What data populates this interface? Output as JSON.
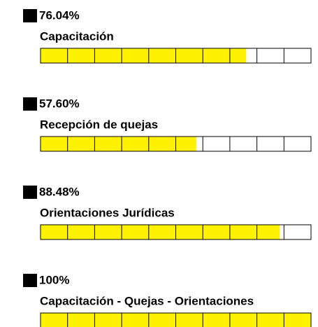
{
  "chart_data": {
    "type": "progress",
    "categories": [
      "Capacitación",
      "Recepción de quejas",
      "Orientaciones Jurídicas",
      "Capacitación - Quejas - Orientaciones"
    ],
    "values": [
      76.04,
      57.6,
      88.48,
      100
    ],
    "value_labels": [
      "76.04%",
      "57.60%",
      "88.48%",
      "100%"
    ],
    "color": "#fff200",
    "xlim": [
      0,
      100
    ],
    "xticks": [
      0,
      10,
      20,
      30,
      40,
      50,
      60,
      70,
      80,
      90,
      100
    ]
  }
}
